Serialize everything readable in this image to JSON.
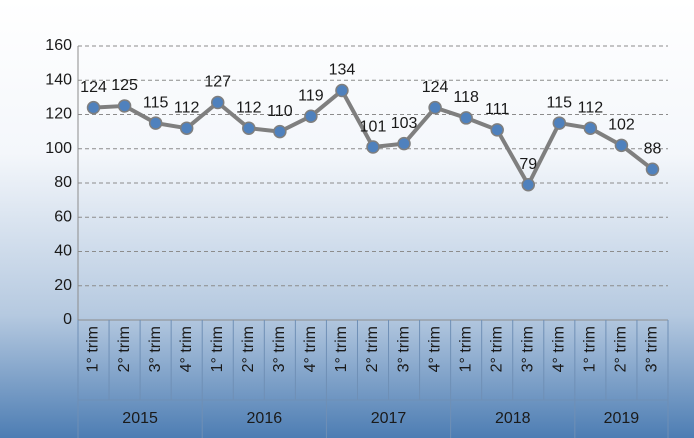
{
  "chart_data": {
    "type": "line",
    "groups": [
      {
        "name": "2015",
        "categories": [
          "1° trim",
          "2° trim",
          "3° trim",
          "4° trim"
        ]
      },
      {
        "name": "2016",
        "categories": [
          "1° trim",
          "2° trim",
          "3° trim",
          "4° trim"
        ]
      },
      {
        "name": "2017",
        "categories": [
          "1° trim",
          "2° trim",
          "3° trim",
          "4° trim"
        ]
      },
      {
        "name": "2018",
        "categories": [
          "1° trim",
          "2° trim",
          "3° trim",
          "4° trim"
        ]
      },
      {
        "name": "2019",
        "categories": [
          "1° trim",
          "2° trim",
          "3° trim"
        ]
      }
    ],
    "values": [
      124,
      125,
      115,
      112,
      127,
      112,
      110,
      119,
      134,
      101,
      103,
      124,
      118,
      111,
      79,
      115,
      112,
      102,
      88
    ],
    "color": "#7f7f7f",
    "marker_color": "#4f81bd",
    "ylim": [
      0,
      160
    ],
    "yticks": [
      0,
      20,
      40,
      60,
      80,
      100,
      120,
      140,
      160
    ],
    "grid": true,
    "data_labels": true
  }
}
